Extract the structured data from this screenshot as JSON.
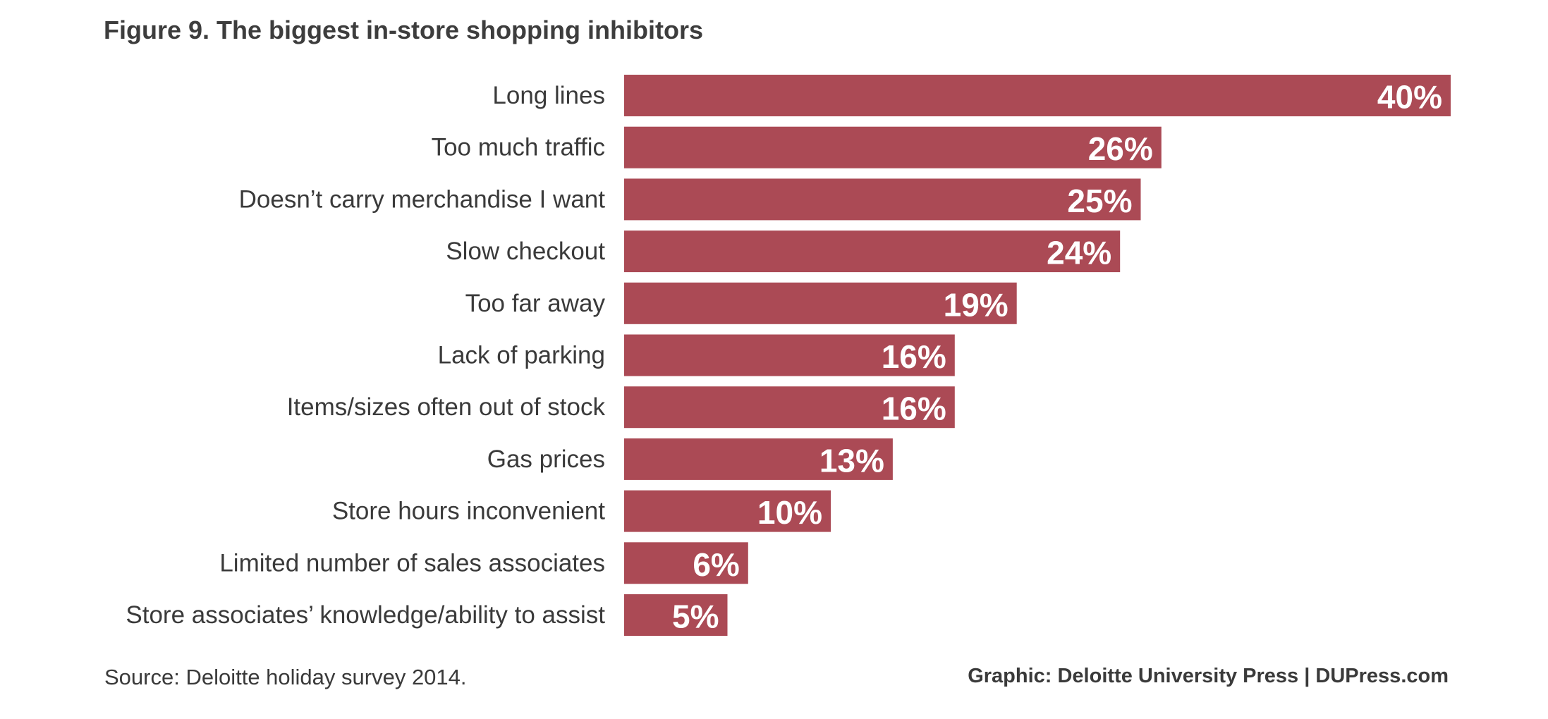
{
  "chart_data": {
    "type": "bar",
    "orientation": "horizontal",
    "title": "Figure 9. The biggest in-store shopping inhibitors",
    "categories": [
      "Long lines",
      "Too much traffic",
      "Doesn’t carry merchandise I want",
      "Slow checkout",
      "Too far away",
      "Lack of parking",
      "Items/sizes often out of stock",
      "Gas prices",
      "Store hours inconvenient",
      "Limited number of sales associates",
      "Store associates’ knowledge/ability to assist"
    ],
    "values": [
      40,
      26,
      25,
      24,
      19,
      16,
      16,
      13,
      10,
      6,
      5
    ],
    "value_labels": [
      "40%",
      "26%",
      "25%",
      "24%",
      "19%",
      "16%",
      "16%",
      "13%",
      "10%",
      "6%",
      "5%"
    ],
    "xlim": [
      0,
      40
    ],
    "grid": false,
    "legend": "none",
    "colors": {
      "bar": "#ab4a55",
      "value_label": "#ffffff",
      "text": "#3a3a3a"
    }
  },
  "footer": {
    "source": "Source: Deloitte holiday survey 2014.",
    "credit": "Graphic: Deloitte University Press  |  DUPress.com"
  }
}
